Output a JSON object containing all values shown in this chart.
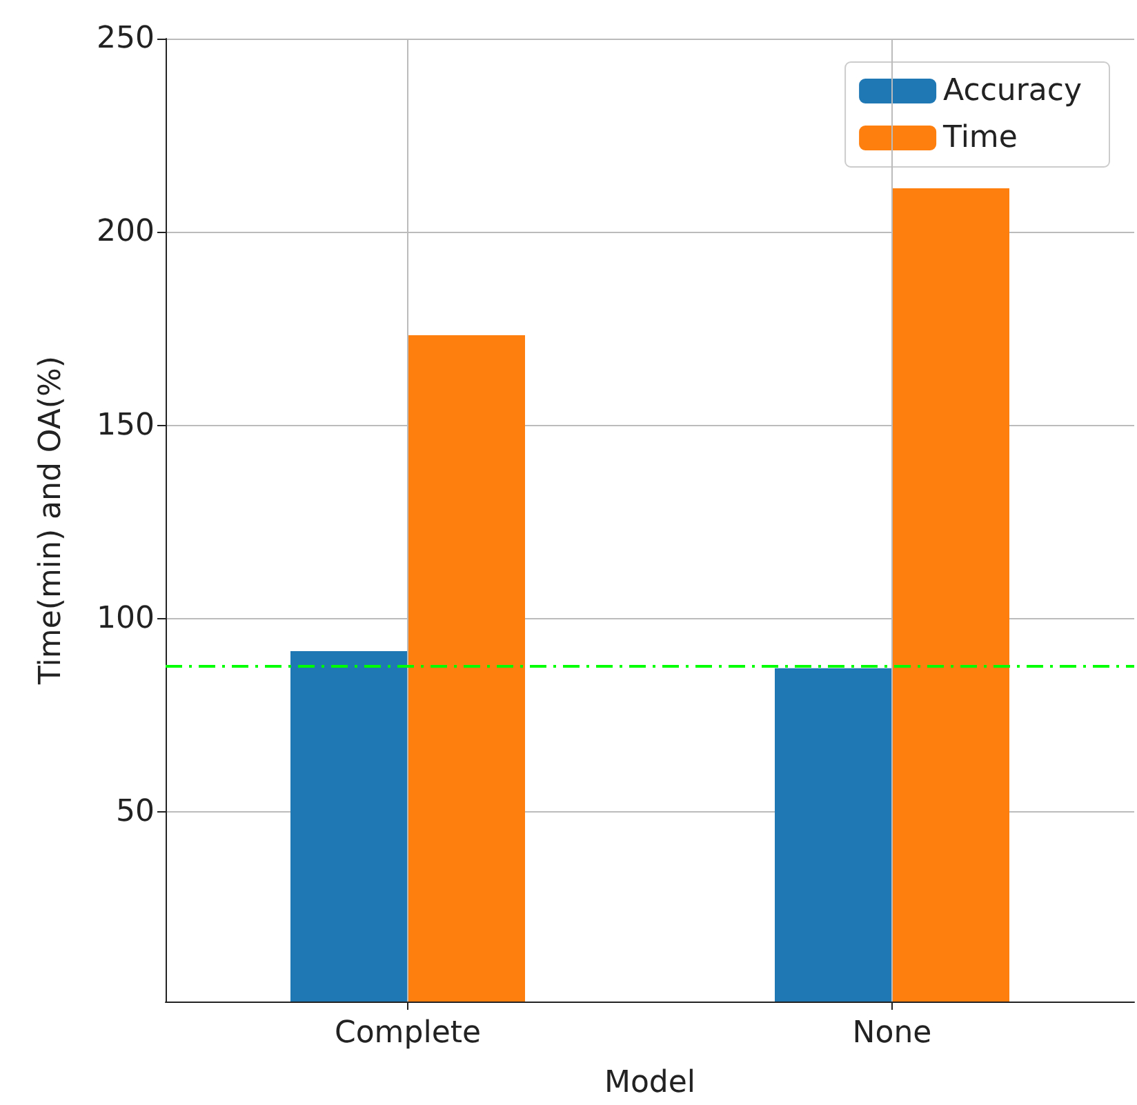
{
  "chart_data": {
    "type": "bar",
    "xlabel": "Model",
    "ylabel": "Time(min) and OA(%)",
    "categories": [
      "Complete",
      "None"
    ],
    "series": [
      {
        "name": "Accuracy",
        "color": "#1f77b4",
        "values": [
          91.6,
          87.2
        ]
      },
      {
        "name": "Time",
        "color": "#ff7f0e",
        "values": [
          173.3,
          211.3
        ]
      }
    ],
    "ylim": [
      1,
      250
    ],
    "yticks": [
      50,
      100,
      150,
      200,
      250
    ],
    "ref_lines": [
      {
        "axis": "y",
        "value": 87.6,
        "color": "#00ff00",
        "line_style": "dashdot"
      }
    ],
    "grid": true,
    "legend": "top right"
  }
}
